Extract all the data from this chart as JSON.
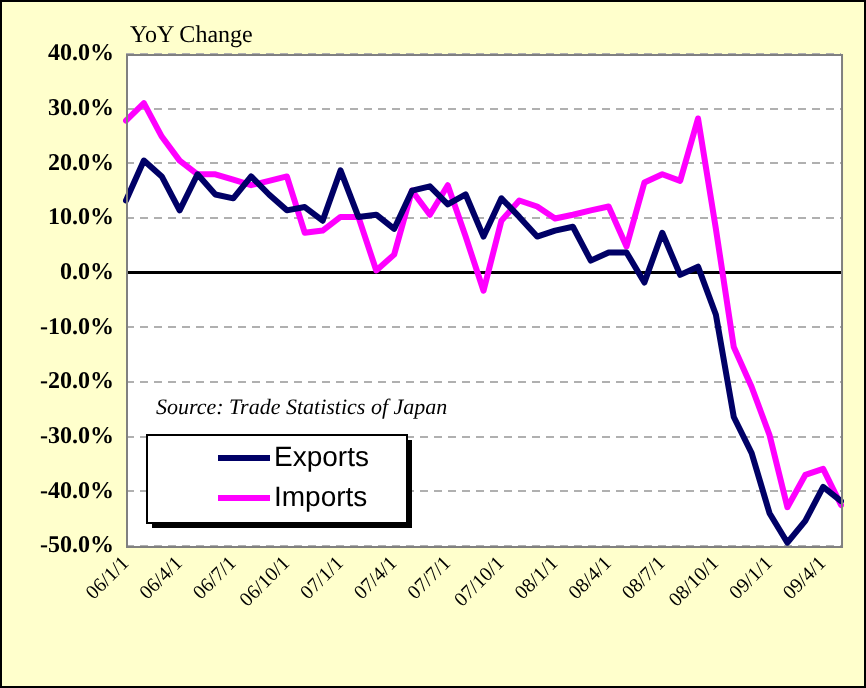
{
  "chart_data": {
    "type": "line",
    "ylabel": "YoY Change",
    "categories": [
      "06/1/1",
      null,
      null,
      "06/4/1",
      null,
      null,
      "06/7/1",
      null,
      null,
      "06/10/1",
      null,
      null,
      "07/1/1",
      null,
      null,
      "07/4/1",
      null,
      null,
      "07/7/1",
      null,
      null,
      "07/10/1",
      null,
      null,
      "08/1/1",
      null,
      null,
      "08/4/1",
      null,
      null,
      "08/7/1",
      null,
      null,
      "08/10/1",
      null,
      null,
      "09/1/1",
      null,
      null,
      "09/4/1",
      null
    ],
    "series": [
      {
        "name": "Exports",
        "color": "#000066",
        "values": [
          13.2,
          20.5,
          17.6,
          11.4,
          18,
          14.3,
          13.6,
          17.6,
          14.3,
          11.4,
          12,
          9.5,
          18.7,
          10.2,
          10.6,
          8,
          15,
          15.8,
          12.5,
          14.3,
          6.6,
          13.6,
          10.2,
          6.6,
          7.7,
          8.4,
          2.2,
          3.7,
          3.7,
          -1.8,
          7.3,
          -0.4,
          1.1,
          -7.7,
          -26.4,
          -33,
          -44,
          -49.4,
          -45.4,
          -39.2,
          -41.8
        ]
      },
      {
        "name": "Imports",
        "color": "#ff00ff",
        "values": [
          27.8,
          31,
          24.9,
          20.5,
          18,
          18,
          17,
          16,
          16.8,
          17.6,
          7.3,
          7.7,
          10.2,
          10.2,
          0.4,
          3.3,
          15,
          10.6,
          16,
          6.6,
          -3.3,
          9.5,
          13.2,
          12.1,
          9.9,
          10.6,
          11.4,
          12.1,
          4.8,
          16.5,
          18,
          16.8,
          28.2,
          8,
          -13.6,
          -20.9,
          -29.7,
          -42.9,
          -37,
          -35.9,
          -42.5
        ]
      }
    ],
    "ylim": [
      -50,
      40
    ],
    "yticks": [
      {
        "value": -50,
        "label": "-50.0%"
      },
      {
        "value": -40,
        "label": "-40.0%"
      },
      {
        "value": -30,
        "label": "-30.0%"
      },
      {
        "value": -20,
        "label": "-20.0%"
      },
      {
        "value": -10,
        "label": "-10.0%"
      },
      {
        "value": 0,
        "label": "0.0%"
      },
      {
        "value": 10,
        "label": "10.0%"
      },
      {
        "value": 20,
        "label": "20.0%"
      },
      {
        "value": 30,
        "label": "30.0%"
      },
      {
        "value": 40,
        "label": "40.0%"
      }
    ],
    "grid": "y",
    "legend": "bottom left",
    "marker": "none",
    "line_style": "solid",
    "annotations": [
      "Source: Trade Statistics of Japan"
    ]
  }
}
